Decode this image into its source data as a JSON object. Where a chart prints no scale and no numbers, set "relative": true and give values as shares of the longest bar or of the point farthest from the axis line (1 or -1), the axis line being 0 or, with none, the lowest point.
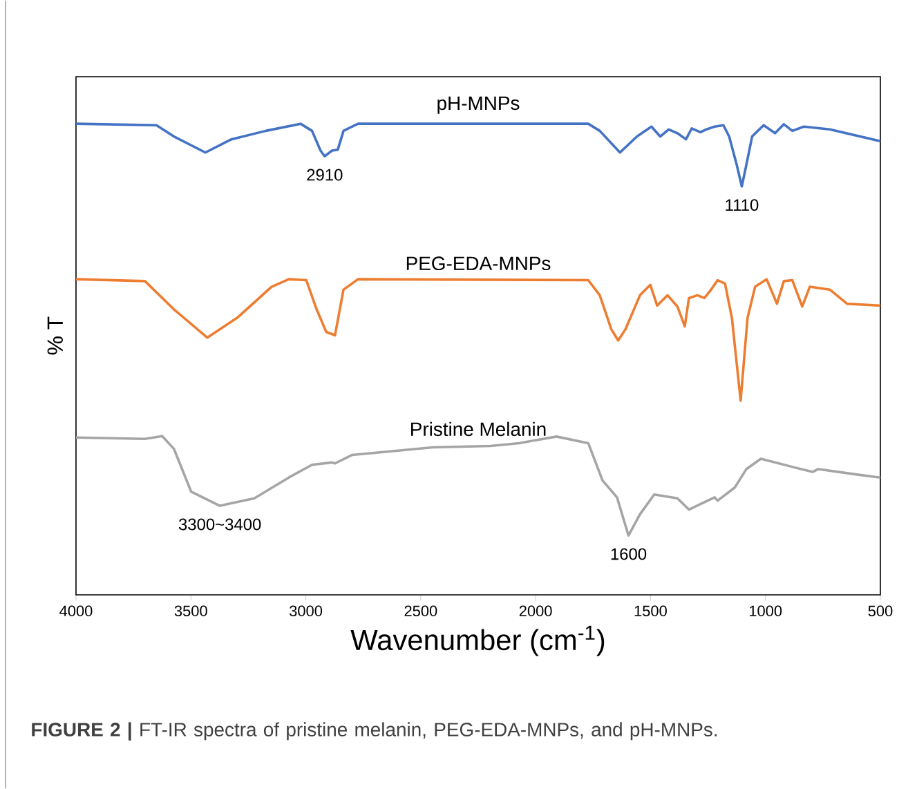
{
  "chart_data": {
    "type": "line",
    "relative": true,
    "xlabel": "Wavenumber (cm$^{-1}$)",
    "ylabel": "% T",
    "xlim": [
      4000,
      500
    ],
    "xticks": [
      4000,
      3500,
      3000,
      2500,
      2000,
      1500,
      1000,
      500
    ],
    "legend": false,
    "grid": false,
    "marker": "none",
    "line_style": "solid",
    "series": [
      {
        "name": "pH-MNPs",
        "color": "#4472c4",
        "x": [
          4000,
          3650,
          3574,
          3437,
          3324,
          3174,
          3023,
          2973,
          2936,
          2918,
          2886,
          2861,
          2836,
          2773,
          1771,
          1721,
          1633,
          1559,
          1496,
          1458,
          1421,
          1383,
          1346,
          1321,
          1283,
          1258,
          1221,
          1183,
          1158,
          1125,
          1103,
          1083,
          1058,
          1008,
          958,
          920,
          883,
          833,
          720,
          500
        ],
        "values": [
          1.0,
          0.997,
          0.973,
          0.939,
          0.967,
          0.985,
          1.0,
          0.985,
          0.943,
          0.931,
          0.943,
          0.945,
          0.985,
          1.0,
          1.0,
          0.985,
          0.939,
          0.973,
          0.994,
          0.973,
          0.988,
          0.98,
          0.967,
          0.99,
          0.982,
          0.988,
          0.994,
          0.997,
          0.973,
          0.913,
          0.867,
          0.913,
          0.973,
          0.997,
          0.98,
          0.999,
          0.985,
          0.994,
          0.988,
          0.963
        ]
      },
      {
        "name": "PEG-EDA-MNPs",
        "color": "#ed7d31",
        "x": [
          4000,
          3700,
          3574,
          3429,
          3299,
          3149,
          3074,
          2998,
          2953,
          2911,
          2873,
          2836,
          2773,
          1771,
          1721,
          1671,
          1641,
          1609,
          1546,
          1501,
          1471,
          1426,
          1383,
          1351,
          1333,
          1296,
          1266,
          1241,
          1208,
          1176,
          1146,
          1108,
          1078,
          1045,
          995,
          950,
          920,
          883,
          840,
          807,
          720,
          645,
          500
        ],
        "values": [
          0.67,
          0.666,
          0.606,
          0.546,
          0.588,
          0.654,
          0.67,
          0.668,
          0.606,
          0.558,
          0.551,
          0.648,
          0.67,
          0.668,
          0.636,
          0.564,
          0.54,
          0.564,
          0.636,
          0.658,
          0.614,
          0.636,
          0.612,
          0.57,
          0.63,
          0.636,
          0.63,
          0.645,
          0.668,
          0.661,
          0.588,
          0.412,
          0.588,
          0.654,
          0.67,
          0.618,
          0.666,
          0.668,
          0.612,
          0.654,
          0.648,
          0.618,
          0.614
        ]
      },
      {
        "name": "Pristine Melanin",
        "color": "#a5a5a5",
        "x": [
          4000,
          3700,
          3625,
          3574,
          3499,
          3374,
          3224,
          3074,
          2973,
          2886,
          2873,
          2798,
          2448,
          2197,
          2072,
          1909,
          1771,
          1709,
          1646,
          1596,
          1546,
          1484,
          1383,
          1333,
          1221,
          1208,
          1133,
          1083,
          1020,
          870,
          795,
          770,
          595,
          500
        ],
        "values": [
          0.334,
          0.331,
          0.337,
          0.31,
          0.219,
          0.189,
          0.205,
          0.249,
          0.276,
          0.281,
          0.279,
          0.297,
          0.313,
          0.316,
          0.322,
          0.336,
          0.322,
          0.243,
          0.207,
          0.126,
          0.171,
          0.213,
          0.205,
          0.181,
          0.207,
          0.2,
          0.228,
          0.267,
          0.289,
          0.27,
          0.261,
          0.267,
          0.255,
          0.249
        ]
      }
    ],
    "annotations": [
      {
        "text": "2910",
        "x": 2918,
        "y": 0.931
      },
      {
        "text": "1110",
        "x": 1103,
        "y": 0.867
      },
      {
        "text": "3300~3400",
        "x": 3374,
        "y": 0.189
      },
      {
        "text": "1600",
        "x": 1596,
        "y": 0.126
      },
      "**FIGURE 2 |** FT-IR spectra of pristine melanin, PEG-EDA-MNPs, and pH-MNPs."
    ]
  }
}
